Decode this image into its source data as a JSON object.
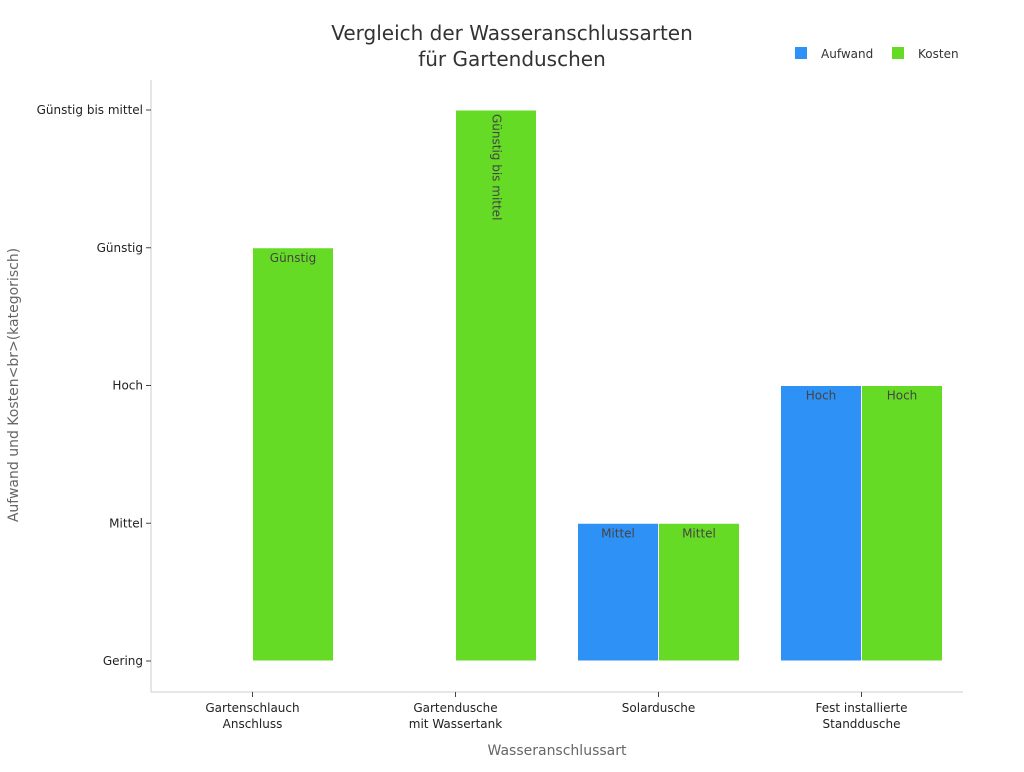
{
  "chart_data": {
    "type": "bar",
    "title": "Vergleich der Wasseranschlussarten<br>für Gartenduschen",
    "xlabel": "Wasseranschlussart",
    "ylabel": "Aufwand und Kosten<br>(kategorisch)",
    "categories": [
      "Gartenschlauch<br>Anschluss",
      "Gartendusche<br>mit Wassertank",
      "Solardusche",
      "Fest installierte<br>Standdusche"
    ],
    "y_categories": [
      "Gering",
      "Mittel",
      "Hoch",
      "Günstig",
      "Günstig bis mittel"
    ],
    "series": [
      {
        "name": "Aufwand",
        "color": "#2E91F5",
        "values": [
          null,
          null,
          "Mittel",
          "Hoch"
        ],
        "labels": [
          "",
          "",
          "Mittel",
          "Hoch"
        ]
      },
      {
        "name": "Kosten",
        "color": "#66DB26",
        "values": [
          "Günstig",
          "Günstig bis mittel",
          "Mittel",
          "Hoch"
        ],
        "labels": [
          "Günstig",
          "Günstig bis mittel",
          "Mittel",
          "Hoch"
        ]
      }
    ],
    "legend_position": "top-right",
    "grid": false
  }
}
